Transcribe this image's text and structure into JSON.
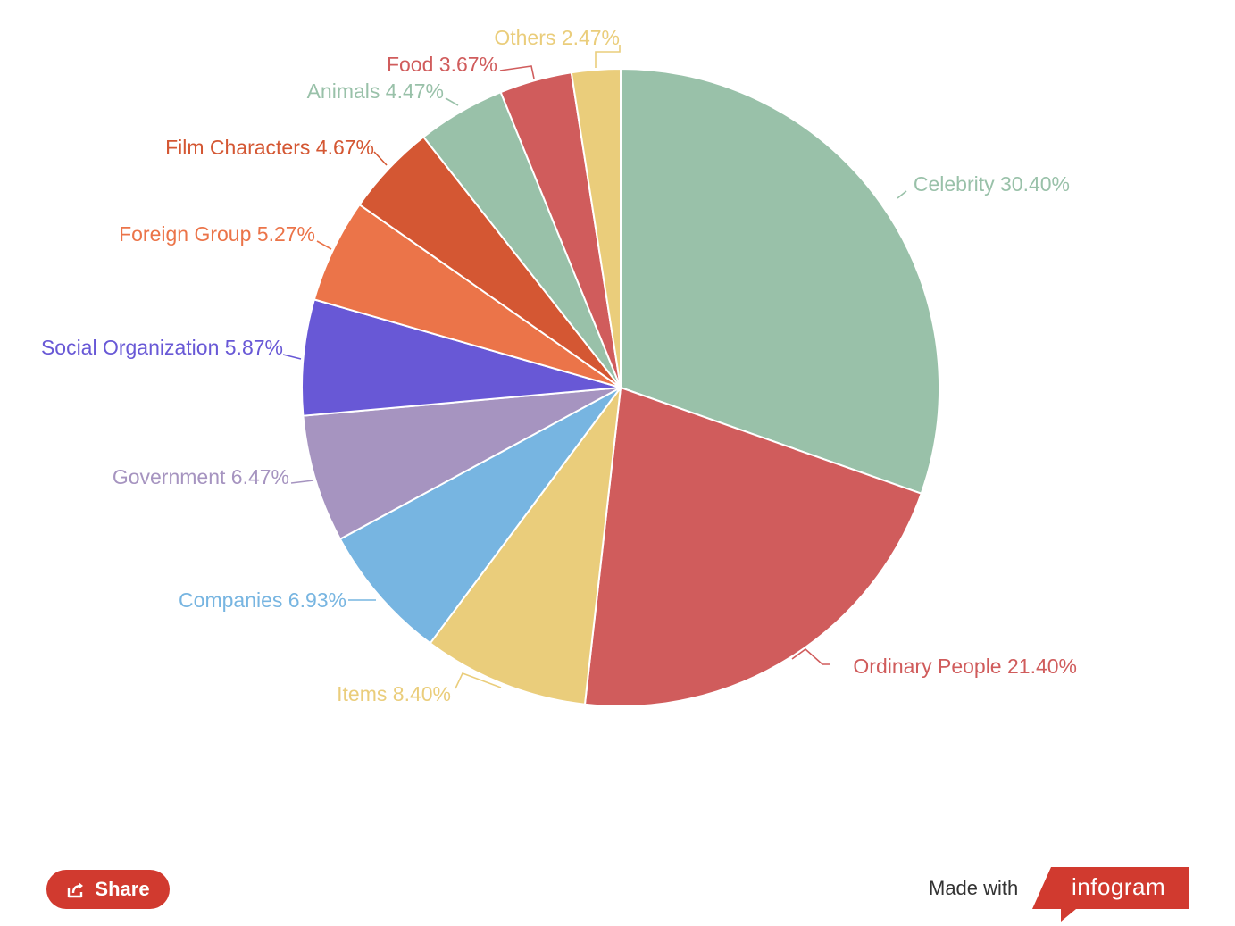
{
  "chart_data": {
    "type": "pie",
    "title": "",
    "slices": [
      {
        "label": "Celebrity",
        "value": 30.4,
        "text": "Celebrity 30.40%",
        "color": "#99c1a9"
      },
      {
        "label": "Ordinary People",
        "value": 21.4,
        "text": "Ordinary People 21.40%",
        "color": "#d05c5c"
      },
      {
        "label": "Items",
        "value": 8.4,
        "text": "Items 8.40%",
        "color": "#eacd7b"
      },
      {
        "label": "Companies",
        "value": 6.93,
        "text": "Companies 6.93%",
        "color": "#77b5e1"
      },
      {
        "label": "Government",
        "value": 6.47,
        "text": "Government 6.47%",
        "color": "#a694c0"
      },
      {
        "label": "Social Organization",
        "value": 5.87,
        "text": "Social Organization 5.87%",
        "color": "#6858d6"
      },
      {
        "label": "Foreign Group",
        "value": 5.27,
        "text": "Foreign Group 5.27%",
        "color": "#eb7449"
      },
      {
        "label": "Film Characters",
        "value": 4.67,
        "text": "Film Characters 4.67%",
        "color": "#d45733"
      },
      {
        "label": "Animals",
        "value": 4.47,
        "text": "Animals 4.47%",
        "color": "#99c1a9"
      },
      {
        "label": "Food",
        "value": 3.67,
        "text": "Food 3.67%",
        "color": "#d05c5c"
      },
      {
        "label": "Others",
        "value": 2.47,
        "text": "Others 2.47%",
        "color": "#eacd7b"
      }
    ]
  },
  "footer": {
    "share_label": "Share",
    "made_with_label": "Made with",
    "brand_label": "infogram",
    "share_color": "#d13a2f",
    "brand_color": "#d13a2f"
  }
}
